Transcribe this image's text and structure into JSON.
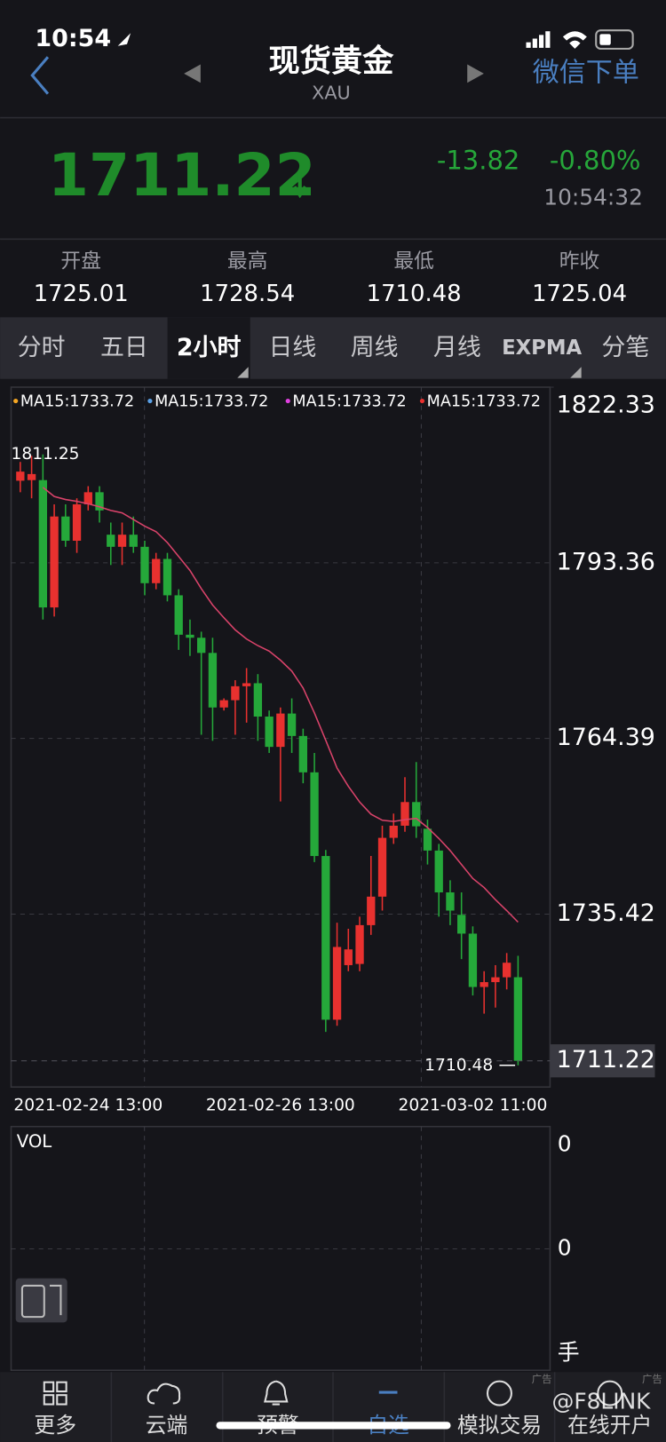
{
  "status_bar": {
    "time": "10:54"
  },
  "header": {
    "title": "现货黄金",
    "subtitle": "XAU",
    "action": "微信下单"
  },
  "quote": {
    "price": "1711.22",
    "change": "-13.82",
    "change_pct": "-0.80%",
    "time": "10:54:32"
  },
  "stats": [
    {
      "label": "开盘",
      "value": "1725.01"
    },
    {
      "label": "最高",
      "value": "1728.54"
    },
    {
      "label": "最低",
      "value": "1710.48"
    },
    {
      "label": "昨收",
      "value": "1725.04"
    }
  ],
  "tabs": [
    "分时",
    "五日",
    "2小时",
    "日线",
    "周线",
    "月线",
    "EXPMA",
    "分笔"
  ],
  "chart_data": {
    "type": "candlestick",
    "legend": [
      {
        "label": "MA15:1733.72",
        "color": "#f5a623"
      },
      {
        "label": "MA15:1733.72",
        "color": "#5aa0e6"
      },
      {
        "label": "MA15:1733.72",
        "color": "#e040e0"
      },
      {
        "label": "MA15:1733.72",
        "color": "#e8312f"
      }
    ],
    "up_color": "#e8312f",
    "down_color": "#25a83a",
    "ma_color": "#d9436a",
    "ylim": [
      1706.9,
      1822.33
    ],
    "yticks": [
      1735.42,
      1764.39,
      1793.36,
      1822.33
    ],
    "categories": [
      null,
      null,
      null,
      null,
      null,
      null,
      "2021-02-24 13:00",
      null,
      null,
      null,
      null,
      null,
      null,
      null,
      null,
      null,
      null,
      null,
      null,
      null,
      null,
      null,
      null,
      "2021-02-26 13:00",
      null,
      null,
      null,
      null,
      null,
      null,
      null,
      null,
      null,
      null,
      null,
      null,
      null,
      null,
      null,
      null,
      "2021-03-02 11:00",
      null,
      null,
      null,
      null
    ],
    "open": [
      1806.9,
      1807,
      1807,
      1786,
      1801,
      1797,
      1803,
      1805,
      1798,
      1796,
      1798,
      1796,
      1790,
      1794,
      1788,
      1781.5,
      1781,
      1778.5,
      1769.5,
      1770.7,
      1773,
      1773.5,
      1768,
      1763,
      1768.5,
      1764.8,
      1758.8,
      1745,
      1718,
      1727,
      1727.2,
      1733.6,
      1738.3,
      1748,
      1750,
      1753.9,
      1749.5,
      1745.9,
      1739,
      1735.3,
      1732.2,
      1723.4,
      1724.2,
      1725,
      1725.01
    ],
    "high": [
      1810,
      1811,
      1811.25,
      1803,
      1803,
      1804,
      1806,
      1806,
      1800,
      1800,
      1801,
      1797,
      1795,
      1795,
      1789,
      1784,
      1782,
      1781,
      1771,
      1774,
      1776,
      1775,
      1769,
      1769.5,
      1771,
      1766,
      1762,
      1746,
      1734,
      1733,
      1735,
      1745,
      1750,
      1752,
      1758,
      1760.5,
      1751,
      1747,
      1741,
      1739,
      1733.4,
      1726,
      1727,
      1729,
      1728.54
    ],
    "low": [
      1805,
      1804,
      1784,
      1784.5,
      1796,
      1795,
      1802,
      1800,
      1793,
      1793,
      1795,
      1788,
      1789,
      1787,
      1779,
      1778,
      1765,
      1764,
      1769,
      1765,
      1767,
      1764,
      1762,
      1754,
      1762,
      1757,
      1744,
      1716,
      1717,
      1726,
      1726,
      1732,
      1736,
      1747,
      1749,
      1748,
      1743.6,
      1735,
      1733.6,
      1728,
      1722,
      1719,
      1720,
      1723,
      1710.48
    ],
    "close": [
      1808.4,
      1808,
      1786,
      1801,
      1797,
      1803,
      1805,
      1802,
      1796,
      1798,
      1796,
      1790,
      1794,
      1788,
      1781.5,
      1781,
      1778.5,
      1769.5,
      1770.7,
      1773,
      1773.5,
      1768,
      1763,
      1768.5,
      1764.8,
      1758.8,
      1745,
      1718,
      1730,
      1729.6,
      1733.6,
      1738.3,
      1748,
      1750,
      1753.9,
      1749.9,
      1745.9,
      1739,
      1736,
      1732.2,
      1723.4,
      1724.2,
      1725,
      1727.4,
      1711.22
    ],
    "ma": [
      null,
      null,
      1805.8,
      1804.3,
      1803.8,
      1803.5,
      1803.1,
      1802.6,
      1802,
      1801.6,
      1800.5,
      1799.4,
      1798.5,
      1796.7,
      1794.4,
      1792.1,
      1789.1,
      1786.4,
      1784.3,
      1782.3,
      1780.8,
      1779.7,
      1778.8,
      1777.3,
      1775.5,
      1772.7,
      1768.6,
      1764.1,
      1759.5,
      1756.5,
      1753.9,
      1751.9,
      1750.9,
      1750.7,
      1751,
      1751.2,
      1749.7,
      1747.9,
      1745.9,
      1743.6,
      1741.3,
      1739.8,
      1737.8,
      1736,
      1734.1
    ],
    "max_label": 1811.25,
    "min_label": 1710.48,
    "last_price": 1711.22
  },
  "volume_panel": {
    "title": "VOL",
    "axis_labels": [
      "0",
      "0",
      "手"
    ]
  },
  "nav": [
    "更多",
    "云端",
    "预警",
    "自选",
    "模拟交易",
    "在线开户"
  ],
  "ad_tag": "广告",
  "watermark": "@F8LINK"
}
